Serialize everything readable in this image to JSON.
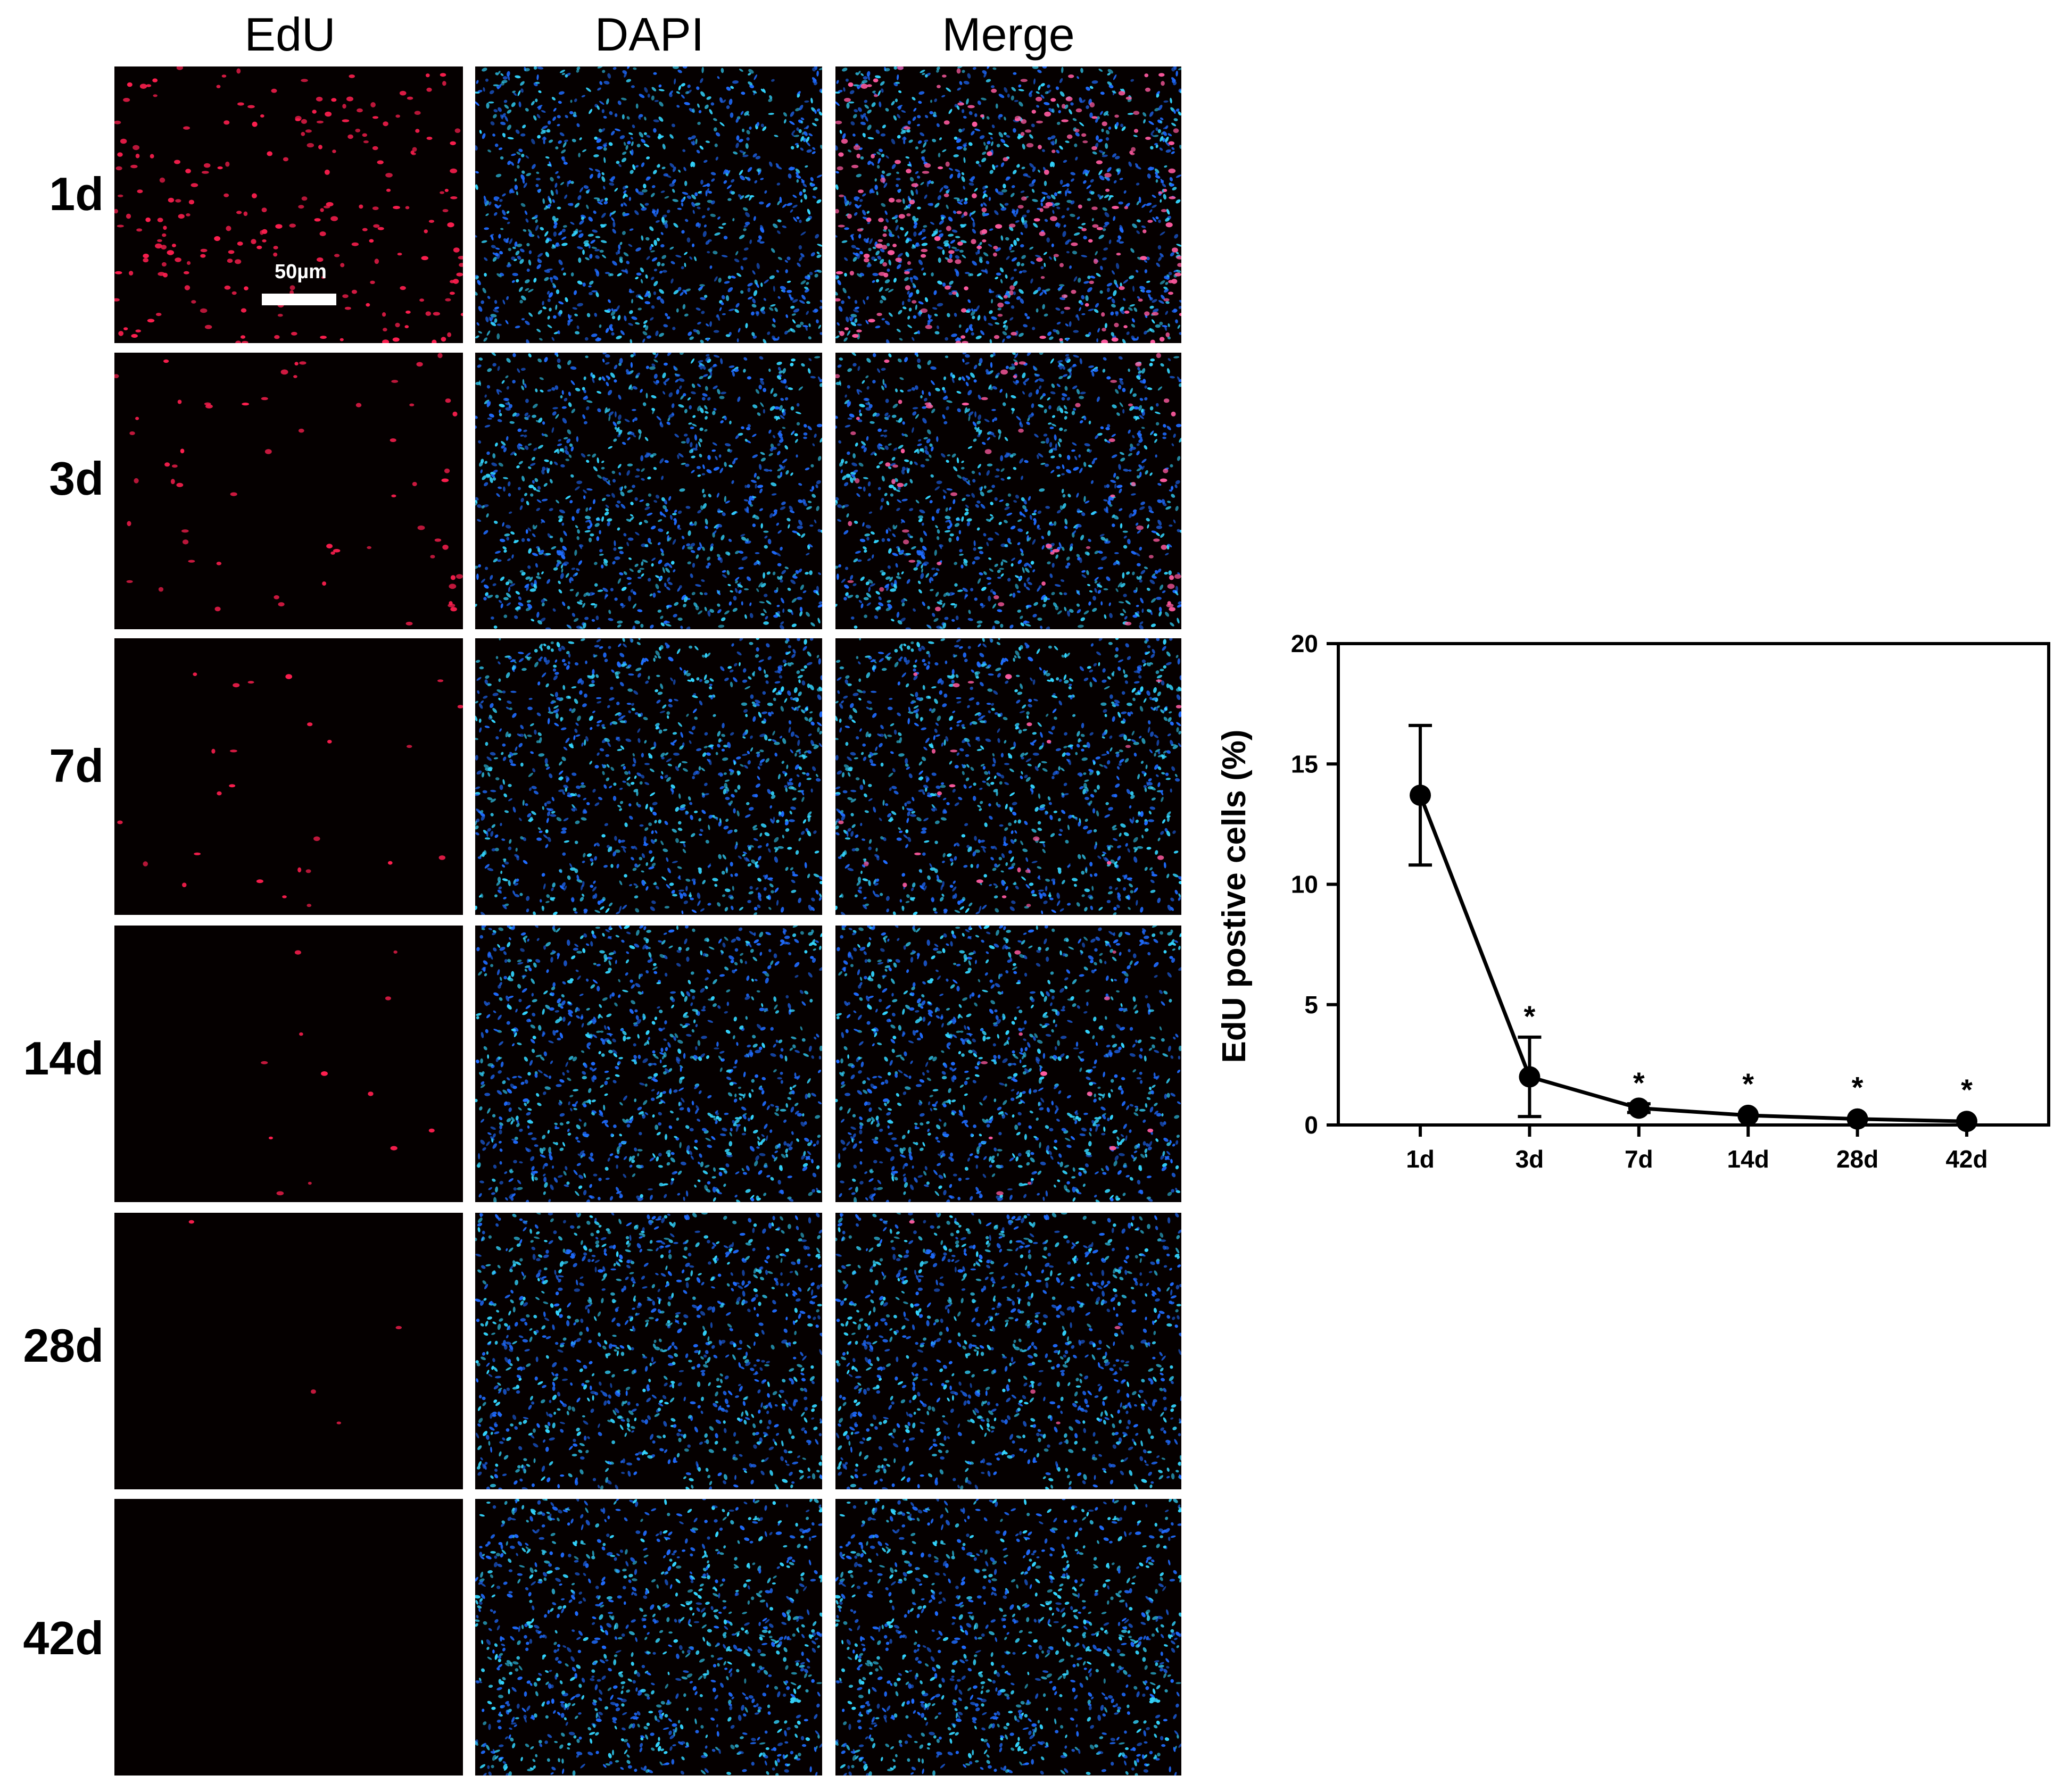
{
  "columns": [
    "EdU",
    "DAPI",
    "Merge"
  ],
  "rows": [
    "1d",
    "3d",
    "7d",
    "14d",
    "28d",
    "42d"
  ],
  "scalebar_label": "50µm",
  "edu_density": [
    220,
    60,
    25,
    12,
    4,
    0
  ],
  "colors": {
    "edu": "#ff1f4f",
    "dapi_dark": "#1f6bff",
    "dapi_light": "#33d6ff",
    "merge_overlap": "#ff5aa0",
    "panel_bg": "#050000",
    "line": "#000000"
  },
  "chart_data": {
    "type": "line",
    "categories": [
      "1d",
      "3d",
      "7d",
      "14d",
      "28d",
      "42d"
    ],
    "values": [
      13.7,
      2.0,
      0.7,
      0.4,
      0.25,
      0.15
    ],
    "errors": [
      2.9,
      1.65,
      0.18,
      0.1,
      0.1,
      0.08
    ],
    "significance": [
      "",
      "*",
      "*",
      "*",
      "*",
      "*"
    ],
    "ylabel": "EdU postive cells (%)",
    "xlabel": "",
    "ylim": [
      0,
      20
    ],
    "yticks": [
      0,
      5,
      10,
      15,
      20
    ]
  }
}
